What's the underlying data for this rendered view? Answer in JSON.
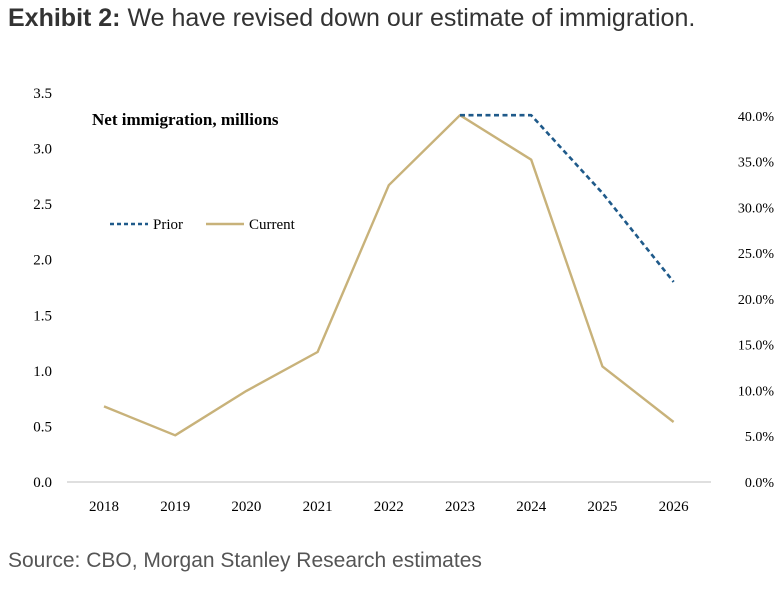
{
  "header": {
    "exhibit_label": "Exhibit 2:",
    "title": "We have revised down our estimate of immigration."
  },
  "footer": {
    "source": "Source: CBO, Morgan Stanley Research estimates"
  },
  "colors": {
    "prior": "#1f5a8a",
    "current": "#c8b27a",
    "axis": "#bfbfbf"
  },
  "chart_data": {
    "type": "line",
    "title": "",
    "annotation": "Net immigration, millions",
    "categories": [
      "2018",
      "2019",
      "2020",
      "2021",
      "2022",
      "2023",
      "2024",
      "2025",
      "2026"
    ],
    "series": [
      {
        "name": "Prior",
        "style": "dashed",
        "values": [
          null,
          null,
          null,
          null,
          null,
          3.3,
          3.3,
          2.6,
          1.8
        ]
      },
      {
        "name": "Current",
        "style": "solid",
        "values": [
          0.68,
          0.42,
          0.82,
          1.17,
          2.67,
          3.3,
          2.9,
          1.04,
          0.54
        ]
      }
    ],
    "ylim": [
      0,
      3.5
    ],
    "yticks": [
      "0.0",
      "0.5",
      "1.0",
      "1.5",
      "2.0",
      "2.5",
      "3.0",
      "3.5"
    ],
    "y2lim": [
      0,
      42.5
    ],
    "y2ticks": [
      "0.0%",
      "5.0%",
      "10.0%",
      "15.0%",
      "20.0%",
      "25.0%",
      "30.0%",
      "35.0%",
      "40.0%"
    ],
    "legend_position": "upper-left",
    "grid": false
  }
}
